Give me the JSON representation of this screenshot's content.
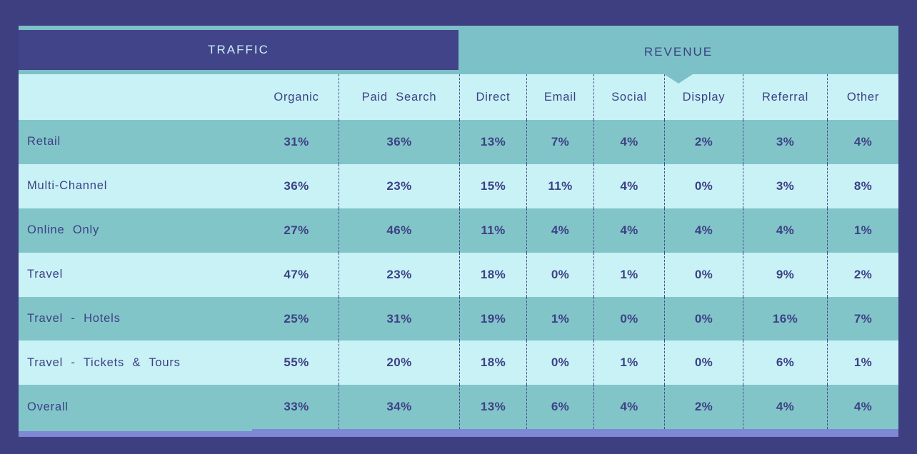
{
  "tabs": {
    "traffic_label": "TRAFFIC",
    "revenue_label": "REVENUE",
    "selected": "TRAFFIC"
  },
  "chart_data": {
    "type": "table",
    "tab_groups": [
      "TRAFFIC",
      "REVENUE"
    ],
    "columns": [
      "Organic",
      "Paid Search",
      "Direct",
      "Email",
      "Social",
      "Display",
      "Referral",
      "Other"
    ],
    "rows": [
      {
        "label": "Retail",
        "values": [
          "31%",
          "36%",
          "13%",
          "7%",
          "4%",
          "2%",
          "3%",
          "4%"
        ]
      },
      {
        "label": "Multi-Channel",
        "values": [
          "36%",
          "23%",
          "15%",
          "11%",
          "4%",
          "0%",
          "3%",
          "8%"
        ]
      },
      {
        "label": "Online Only",
        "values": [
          "27%",
          "46%",
          "11%",
          "4%",
          "4%",
          "4%",
          "4%",
          "1%"
        ]
      },
      {
        "label": "Travel",
        "values": [
          "47%",
          "23%",
          "18%",
          "0%",
          "1%",
          "0%",
          "9%",
          "2%"
        ]
      },
      {
        "label": "Travel - Hotels",
        "values": [
          "25%",
          "31%",
          "19%",
          "1%",
          "0%",
          "0%",
          "16%",
          "7%"
        ]
      },
      {
        "label": "Travel - Tickets & Tours",
        "values": [
          "55%",
          "20%",
          "18%",
          "0%",
          "1%",
          "0%",
          "6%",
          "1%"
        ]
      },
      {
        "label": "Overall",
        "values": [
          "33%",
          "34%",
          "13%",
          "6%",
          "4%",
          "2%",
          "4%",
          "4%"
        ]
      }
    ],
    "values_unit": "percent"
  },
  "colors": {
    "background_navy": "#3D3F81",
    "traffic_tab_navy": "#414489",
    "teal_accent": "#7CC1C7",
    "row_teal": "#82C5C9",
    "row_light_cyan": "#C9F2F6",
    "text_navy": "#3D4184",
    "traffic_text_cyan": "#CDEFF6",
    "bottom_bar_periwinkle": "#7E88D5",
    "dashed_divider": "#474B8C"
  }
}
